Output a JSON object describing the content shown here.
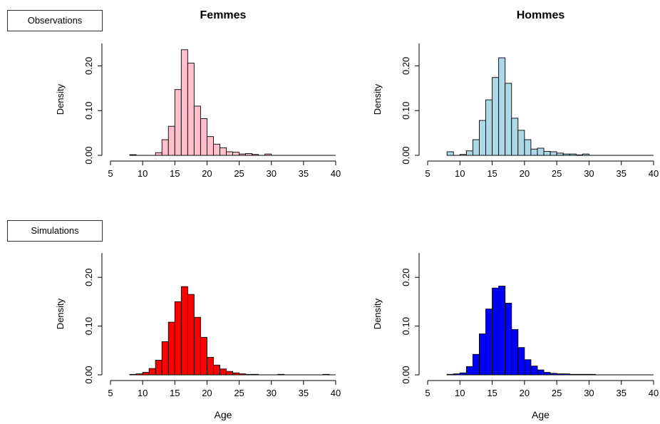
{
  "row_labels": {
    "observations": "Observations",
    "simulations": "Simulations"
  },
  "column_titles": {
    "left": "Femmes",
    "right": "Hommes"
  },
  "chart_data": [
    {
      "type": "histogram",
      "title": "Femmes",
      "xlabel": "",
      "ylabel": "Density",
      "xlim": [
        5,
        40
      ],
      "ylim": [
        0,
        0.25
      ],
      "xticks": [
        "5",
        "10",
        "15",
        "20",
        "25",
        "30",
        "35",
        "40"
      ],
      "yticks": [
        "0.00",
        "0.10",
        "0.20"
      ],
      "fill": "#ffc0cb",
      "bin_edges_start": 8,
      "bin_width": 1,
      "values": [
        0.0015,
        0,
        0,
        0,
        0.006,
        0.035,
        0.065,
        0.147,
        0.236,
        0.206,
        0.11,
        0.082,
        0.042,
        0.025,
        0.017,
        0.008,
        0.007,
        0.003,
        0.004,
        0.002,
        0,
        0.003
      ]
    },
    {
      "type": "histogram",
      "title": "Hommes",
      "xlabel": "",
      "ylabel": "Density",
      "xlim": [
        5,
        40
      ],
      "ylim": [
        0,
        0.25
      ],
      "xticks": [
        "5",
        "10",
        "15",
        "20",
        "25",
        "30",
        "35",
        "40"
      ],
      "yticks": [
        "0.00",
        "0.10",
        "0.20"
      ],
      "fill": "#add8e6",
      "bin_edges_start": 8,
      "bin_width": 1,
      "values": [
        0.008,
        0,
        0.002,
        0.01,
        0.035,
        0.078,
        0.124,
        0.174,
        0.218,
        0.161,
        0.083,
        0.056,
        0.035,
        0.014,
        0.016,
        0.009,
        0.008,
        0.005,
        0.003,
        0.003,
        0.001,
        0.003
      ]
    },
    {
      "type": "histogram",
      "title": "",
      "xlabel": "Age",
      "ylabel": "Density",
      "xlim": [
        5,
        40
      ],
      "ylim": [
        0,
        0.25
      ],
      "xticks": [
        "5",
        "10",
        "15",
        "20",
        "25",
        "30",
        "35",
        "40"
      ],
      "yticks": [
        "0.00",
        "0.10",
        "0.20"
      ],
      "fill": "#ff0000",
      "bin_edges_start": 8,
      "bin_width": 1,
      "values": [
        0.001,
        0.002,
        0.005,
        0.013,
        0.03,
        0.068,
        0.108,
        0.15,
        0.181,
        0.165,
        0.118,
        0.077,
        0.036,
        0.02,
        0.012,
        0.007,
        0.004,
        0.002,
        0.001,
        0.001,
        0,
        0,
        0,
        0.001,
        0,
        0,
        0,
        0,
        0,
        0,
        0.001
      ]
    },
    {
      "type": "histogram",
      "title": "",
      "xlabel": "Age",
      "ylabel": "Density",
      "xlim": [
        5,
        40
      ],
      "ylim": [
        0,
        0.25
      ],
      "xticks": [
        "5",
        "10",
        "15",
        "20",
        "25",
        "30",
        "35",
        "40"
      ],
      "yticks": [
        "0.00",
        "0.10",
        "0.20"
      ],
      "fill": "#0000ff",
      "bin_edges_start": 8,
      "bin_width": 1,
      "values": [
        0.001,
        0.002,
        0.004,
        0.017,
        0.042,
        0.084,
        0.135,
        0.178,
        0.182,
        0.147,
        0.093,
        0.056,
        0.031,
        0.018,
        0.01,
        0.005,
        0.003,
        0.002,
        0.002,
        0.001,
        0.001,
        0.001,
        0.001
      ]
    }
  ]
}
